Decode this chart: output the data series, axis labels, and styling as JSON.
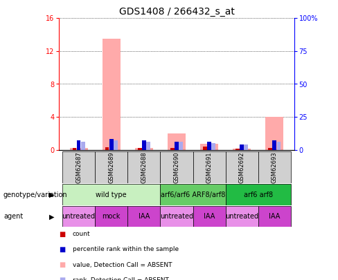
{
  "title": "GDS1408 / 266432_s_at",
  "samples": [
    "GSM62687",
    "GSM62689",
    "GSM62688",
    "GSM62690",
    "GSM62691",
    "GSM62692",
    "GSM62693"
  ],
  "absent_value_bars": [
    0.25,
    13.5,
    0.25,
    2.0,
    0.7,
    0.15,
    4.0
  ],
  "absent_rank_bars": [
    6,
    7,
    6,
    6,
    5,
    4,
    6
  ],
  "count_values": [
    0.25,
    0.35,
    0.25,
    0.2,
    0.4,
    0.15,
    0.25
  ],
  "percentile_values": [
    7,
    8,
    7,
    6,
    6,
    4,
    7
  ],
  "ylim_left": [
    0,
    16
  ],
  "ylim_right": [
    0,
    100
  ],
  "yticks_left": [
    0,
    4,
    8,
    12,
    16
  ],
  "yticks_right": [
    0,
    25,
    50,
    75,
    100
  ],
  "ytick_labels_right": [
    "0",
    "25",
    "50",
    "75",
    "100%"
  ],
  "genotype_groups": [
    {
      "label": "wild type",
      "start": 0,
      "end": 3,
      "color": "#c8f0c0"
    },
    {
      "label": "arf6/arf6 ARF8/arf8",
      "start": 3,
      "end": 5,
      "color": "#66cc66"
    },
    {
      "label": "arf6 arf8",
      "start": 5,
      "end": 7,
      "color": "#22bb44"
    }
  ],
  "agent_groups": [
    {
      "label": "untreated",
      "start": 0,
      "end": 1,
      "color": "#e890e8"
    },
    {
      "label": "mock",
      "start": 1,
      "end": 2,
      "color": "#cc44cc"
    },
    {
      "label": "IAA",
      "start": 2,
      "end": 3,
      "color": "#cc44cc"
    },
    {
      "label": "untreated",
      "start": 3,
      "end": 4,
      "color": "#e890e8"
    },
    {
      "label": "IAA",
      "start": 4,
      "end": 5,
      "color": "#cc44cc"
    },
    {
      "label": "untreated",
      "start": 5,
      "end": 6,
      "color": "#e890e8"
    },
    {
      "label": "IAA",
      "start": 6,
      "end": 7,
      "color": "#cc44cc"
    }
  ],
  "legend_items": [
    {
      "label": "count",
      "color": "#cc0000"
    },
    {
      "label": "percentile rank within the sample",
      "color": "#0000cc"
    },
    {
      "label": "value, Detection Call = ABSENT",
      "color": "#ffaaaa"
    },
    {
      "label": "rank, Detection Call = ABSENT",
      "color": "#aaaaee"
    }
  ],
  "count_color": "#cc0000",
  "percentile_color": "#0000cc",
  "absent_value_color": "#ffaaaa",
  "absent_rank_color": "#aaaaee",
  "sample_box_color": "#d0d0d0",
  "title_fontsize": 10,
  "tick_fontsize": 7,
  "label_fontsize": 7,
  "sample_fontsize": 6
}
